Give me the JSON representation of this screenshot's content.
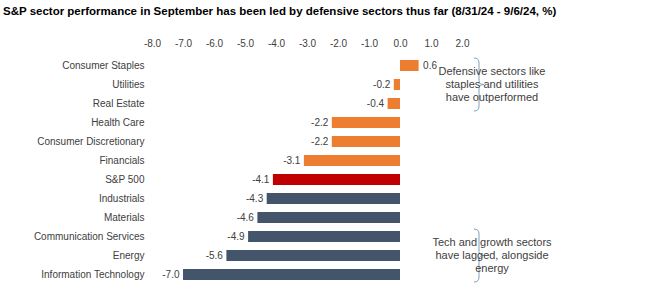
{
  "chart_data": {
    "type": "bar",
    "orientation": "horizontal",
    "title": "S&P sector performance in September has been led by defensive sectors thus far (8/31/24 - 9/6/24, %)",
    "categories": [
      "Consumer Staples",
      "Utilities",
      "Real Estate",
      "Health Care",
      "Consumer Discretionary",
      "Financials",
      "S&P 500",
      "Industrials",
      "Materials",
      "Communication Services",
      "Energy",
      "Information Technology"
    ],
    "values": [
      0.6,
      -0.2,
      -0.4,
      -2.2,
      -2.2,
      -3.1,
      -4.1,
      -4.3,
      -4.6,
      -4.9,
      -5.6,
      -7.0
    ],
    "value_labels": [
      "0.6",
      "-0.2",
      "-0.4",
      "-2.2",
      "-2.2",
      "-3.1",
      "-4.1",
      "-4.3",
      "-4.6",
      "-4.9",
      "-5.6",
      "-7.0"
    ],
    "colors": [
      "#ed7d31",
      "#ed7d31",
      "#ed7d31",
      "#ed7d31",
      "#ed7d31",
      "#ed7d31",
      "#c00000",
      "#44546a",
      "#44546a",
      "#44546a",
      "#44546a",
      "#44546a"
    ],
    "xlim": [
      -8,
      2
    ],
    "xticks": [
      {
        "value": -8,
        "label": "-8.0"
      },
      {
        "value": -7,
        "label": "-7.0"
      },
      {
        "value": -6,
        "label": "-6.0"
      },
      {
        "value": -5,
        "label": "-5.0"
      },
      {
        "value": -4,
        "label": "-4.0"
      },
      {
        "value": -3,
        "label": "-3.0"
      },
      {
        "value": -2,
        "label": "-2.0"
      },
      {
        "value": -1,
        "label": "-1.0"
      },
      {
        "value": 0,
        "label": "0.0"
      },
      {
        "value": 1,
        "label": "1.0"
      },
      {
        "value": 2,
        "label": "2.0"
      }
    ],
    "data_labels": true,
    "grid": false,
    "annotations": [
      {
        "text": [
          "Defensive sectors like",
          "staples and utilities",
          "have outperformed"
        ],
        "from": "Consumer Staples",
        "to": "Real Estate"
      },
      {
        "text": [
          "Tech and growth sectors",
          "have lagged, alongside",
          "energy"
        ],
        "from": "Communication Services",
        "to": "Information Technology"
      }
    ]
  }
}
